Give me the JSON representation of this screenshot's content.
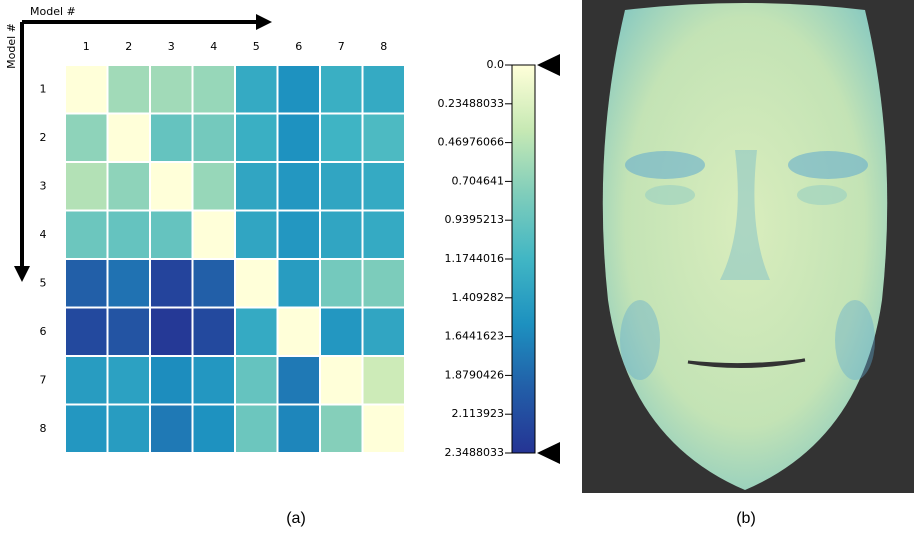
{
  "chart_data": {
    "type": "heatmap",
    "x_label": "Model #",
    "y_label": "Model #",
    "x_categories": [
      "1",
      "2",
      "3",
      "4",
      "5",
      "6",
      "7",
      "8"
    ],
    "y_categories": [
      "1",
      "2",
      "3",
      "4",
      "5",
      "6",
      "7",
      "8"
    ],
    "values": [
      [
        0,
        0.6,
        0.6,
        0.65,
        1.3,
        1.55,
        1.25,
        1.3
      ],
      [
        0.7,
        0,
        0.95,
        0.85,
        1.25,
        1.55,
        1.2,
        1.1
      ],
      [
        0.5,
        0.7,
        0,
        0.65,
        1.35,
        1.5,
        1.35,
        1.3
      ],
      [
        0.9,
        0.95,
        0.95,
        0,
        1.35,
        1.5,
        1.35,
        1.3
      ],
      [
        1.95,
        1.8,
        2.2,
        1.95,
        0,
        1.45,
        0.85,
        0.8
      ],
      [
        2.15,
        2.05,
        2.3,
        2.15,
        1.3,
        0,
        1.5,
        1.35
      ],
      [
        1.45,
        1.4,
        1.6,
        1.5,
        0.95,
        1.75,
        0,
        0.35
      ],
      [
        1.5,
        1.45,
        1.75,
        1.55,
        0.9,
        1.65,
        0.75,
        0
      ]
    ],
    "zlim": [
      0,
      2.3488033
    ],
    "zticks": [
      {
        "value": 0,
        "label": "0.0"
      },
      0.23488033,
      0.46976066,
      0.704641,
      0.9395213,
      1.1744016,
      1.409282,
      1.6441623,
      1.8790426,
      2.113923,
      2.3488033
    ],
    "colors": [
      "#ffffd9",
      "#c7e9b4",
      "#7fcdbb",
      "#41b6c4",
      "#1d91c0",
      "#225ea8",
      "#253494"
    ]
  },
  "captions": [
    "(a)",
    "(b)"
  ]
}
